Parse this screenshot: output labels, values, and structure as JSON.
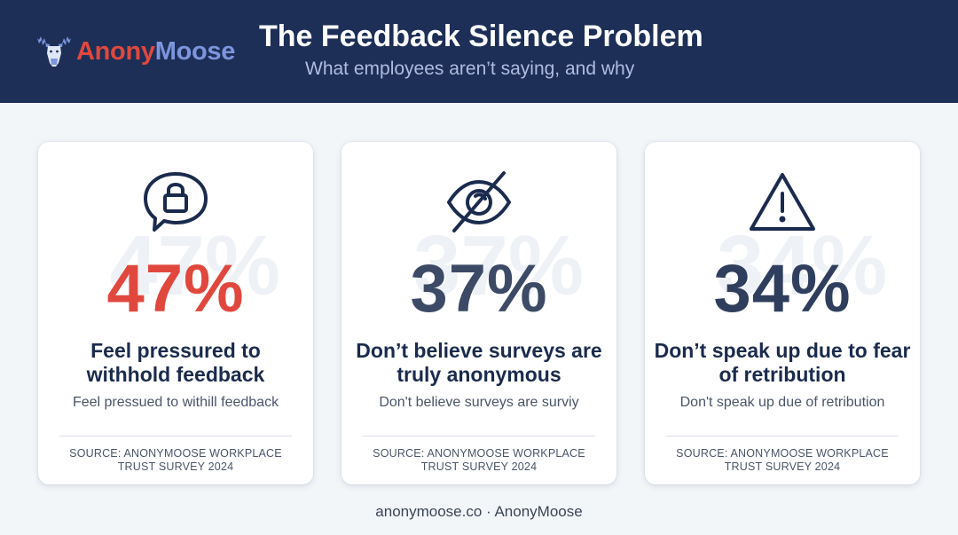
{
  "brand": {
    "name_part1": "Anony",
    "name_part2": "Moose",
    "logo_icon": "moose-icon",
    "colors": {
      "navy": "#1d2f57",
      "red": "#e0483e",
      "slate": "#3c4a66",
      "blue": "#7d95dd"
    }
  },
  "header": {
    "title": "The Feedback Silence Problem",
    "subtitle": "What employees aren’t saying, and why"
  },
  "cards": [
    {
      "icon": "speech-bubble-lock-icon",
      "stat": "47%",
      "stat_color": "#e0483e",
      "headline": "Feel pressured to withhold feedback",
      "caption": "Feel pressued to withill feedback",
      "source": "SOURCE: ANONYMOOSE WORKPLACE TRUST SURVEY 2024"
    },
    {
      "icon": "eye-slash-icon",
      "stat": "37%",
      "stat_color": "#3c4a66",
      "headline": "Don’t believe surveys are truly anonymous",
      "caption": "Don't believe surveys are surviy",
      "source": "SOURCE: ANONYMOOSE WORKPLACE TRUST SURVEY 2024"
    },
    {
      "icon": "warning-triangle-icon",
      "stat": "34%",
      "stat_color": "#2f3e5c",
      "headline": "Don’t speak up due to fear of retribution",
      "caption": "Don't speak up due of retribution",
      "source": "SOURCE: ANONYMOOSE WORKPLACE TRUST SURVEY 2024"
    }
  ],
  "footer": {
    "text": "anonymoose.co · AnonyMoose"
  }
}
